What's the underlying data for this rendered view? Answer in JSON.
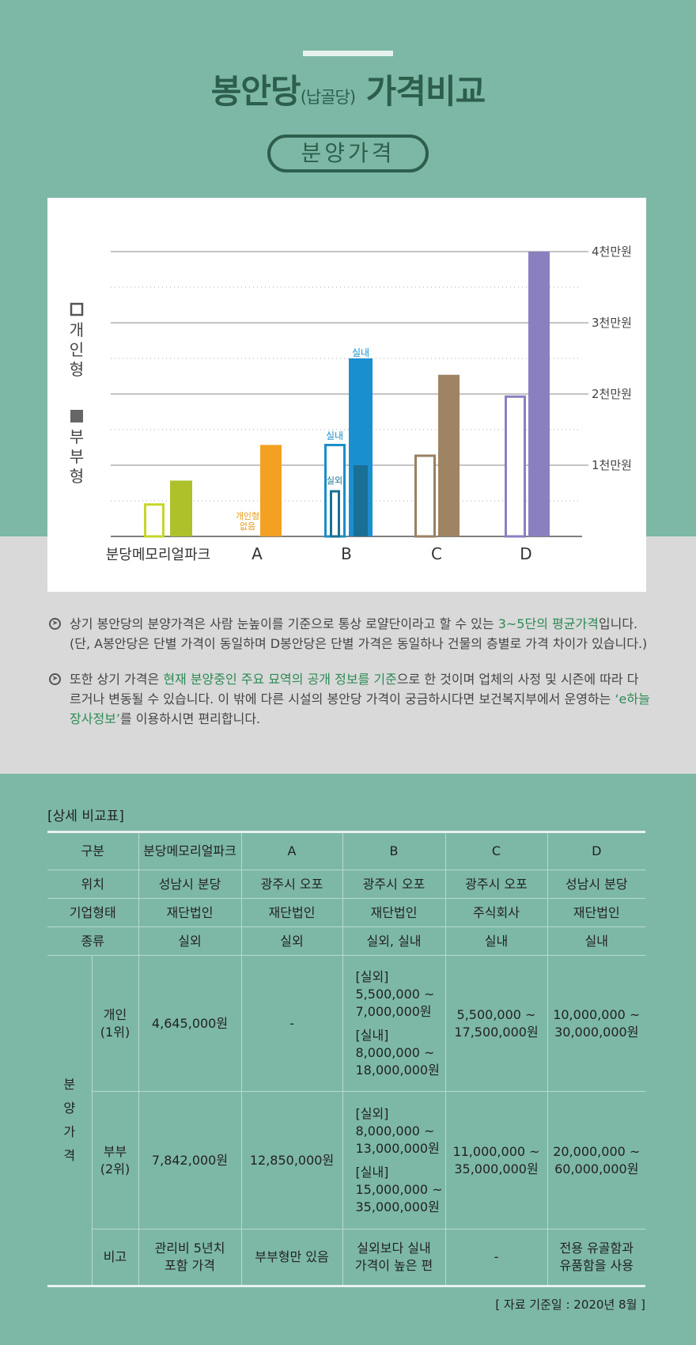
{
  "header": {
    "title_main": "봉안당",
    "title_sub": "(납골당)",
    "title_tail": "가격비교",
    "pill": "분양가격"
  },
  "legend": {
    "individual": "개인형",
    "couple": "부부형"
  },
  "chart_data": {
    "type": "bar",
    "y_ticks": [
      "1천만원",
      "2천만원",
      "3천만원",
      "4천만원"
    ],
    "ylim": [
      0,
      40000000
    ],
    "categories": [
      "분당메모리얼파크",
      "A",
      "B",
      "C",
      "D"
    ],
    "bars": [
      {
        "category": "분당메모리얼파크",
        "series": "개인형",
        "value": 4645000,
        "style": "outline",
        "color": "#c5d62b"
      },
      {
        "category": "분당메모리얼파크",
        "series": "부부형",
        "value": 7842000,
        "style": "fill",
        "color": "#aec12b"
      },
      {
        "category": "A",
        "series": "부부형",
        "value": 12850000,
        "style": "fill",
        "color": "#f2a122"
      },
      {
        "category": "B",
        "series": "개인형",
        "sub": "실내",
        "value": 13000000,
        "style": "outline",
        "color": "#1a8fc8"
      },
      {
        "category": "B",
        "series": "개인형",
        "sub": "실외",
        "value": 6500000,
        "style": "outline",
        "color": "#1a6f95"
      },
      {
        "category": "B",
        "series": "부부형",
        "sub": "실내",
        "value": 25000000,
        "style": "fill",
        "color": "#1a8fd0"
      },
      {
        "category": "B",
        "series": "부부형",
        "sub": "실외",
        "value": 10000000,
        "style": "fill",
        "color": "#1a6f95"
      },
      {
        "category": "C",
        "series": "개인형",
        "value": 11500000,
        "style": "outline",
        "color": "#9a8163"
      },
      {
        "category": "C",
        "series": "부부형",
        "value": 22700000,
        "style": "fill",
        "color": "#9e8463"
      },
      {
        "category": "D",
        "series": "개인형",
        "value": 19800000,
        "style": "outline",
        "color": "#8a80c0"
      },
      {
        "category": "D",
        "series": "부부형",
        "value": 40000000,
        "style": "fill",
        "color": "#8a80c0"
      }
    ],
    "annotations": {
      "a_none": [
        "개인형",
        "없음"
      ],
      "b_indoor": "실내",
      "b_outdoor": "실외"
    }
  },
  "notes": [
    {
      "pre": "상기 봉안당의 분양가격은 사람 눈높이를 기준으로 통상 로얄단이라고 할 수 있는 ",
      "hl": "3~5단의 평균가격",
      "post": "입니다. (단, A봉안당은 단별 가격이 동일하며 D봉안당은 단별 가격은 동일하나 건물의 층별로 가격 차이가 있습니다.)"
    },
    {
      "pre": "또한 상기 가격은 ",
      "hl": "현재 분양중인 주요 묘역의 공개 정보를 기준",
      "mid": "으로 한 것이며 업체의 사정 및 시즌에 따라 다르거나 변동될 수 있습니다. 이 밖에 다른 시설의 봉안당 가격이 궁금하시다면 보건복지부에서 운영하는 ",
      "hl2": "‘e하늘 장사정보’",
      "post": "를 이용하시면 편리합니다."
    }
  ],
  "table": {
    "caption": "[상세 비교표]",
    "header": [
      "구분",
      "분당메모리얼파크",
      "A",
      "B",
      "C",
      "D"
    ],
    "rows": {
      "location": [
        "위치",
        "성남시 분당",
        "광주시 오포",
        "광주시 오포",
        "광주시 오포",
        "성남시 분당"
      ],
      "type": [
        "기업형태",
        "재단법인",
        "재단법인",
        "재단법인",
        "주식회사",
        "재단법인"
      ],
      "kind": [
        "종류",
        "실외",
        "실외",
        "실외, 실내",
        "실내",
        "실내"
      ]
    },
    "group_label": "분양가격",
    "individual": {
      "label1": "개인",
      "label2": "(1위)",
      "bundang": "4,645,000원",
      "a": "-",
      "b_out_h": "[실외]",
      "b_out_1": "5,500,000 ~",
      "b_out_2": "7,000,000원",
      "b_in_h": "[실내]",
      "b_in_1": "8,000,000 ~",
      "b_in_2": "18,000,000원",
      "c1": "5,500,000 ~",
      "c2": "17,500,000원",
      "d1": "10,000,000 ~",
      "d2": "30,000,000원"
    },
    "couple": {
      "label1": "부부",
      "label2": "(2위)",
      "bundang": "7,842,000원",
      "a": "12,850,000원",
      "b_out_h": "[실외]",
      "b_out_1": "8,000,000 ~",
      "b_out_2": "13,000,000원",
      "b_in_h": "[실내]",
      "b_in_1": "15,000,000 ~",
      "b_in_2": "35,000,000원",
      "c1": "11,000,000 ~",
      "c2": "35,000,000원",
      "d1": "20,000,000 ~",
      "d2": "60,000,000원"
    },
    "remarks": {
      "label": "비고",
      "bundang1": "관리비 5년치",
      "bundang2": "포함 가격",
      "a": "부부형만 있음",
      "b1": "실외보다 실내",
      "b2": "가격이 높은 편",
      "c": "-",
      "d1": "전용 유골함과",
      "d2": "유품함을 사용"
    }
  },
  "source": "[ 자료 기준일 : 2020년 8월 ]"
}
